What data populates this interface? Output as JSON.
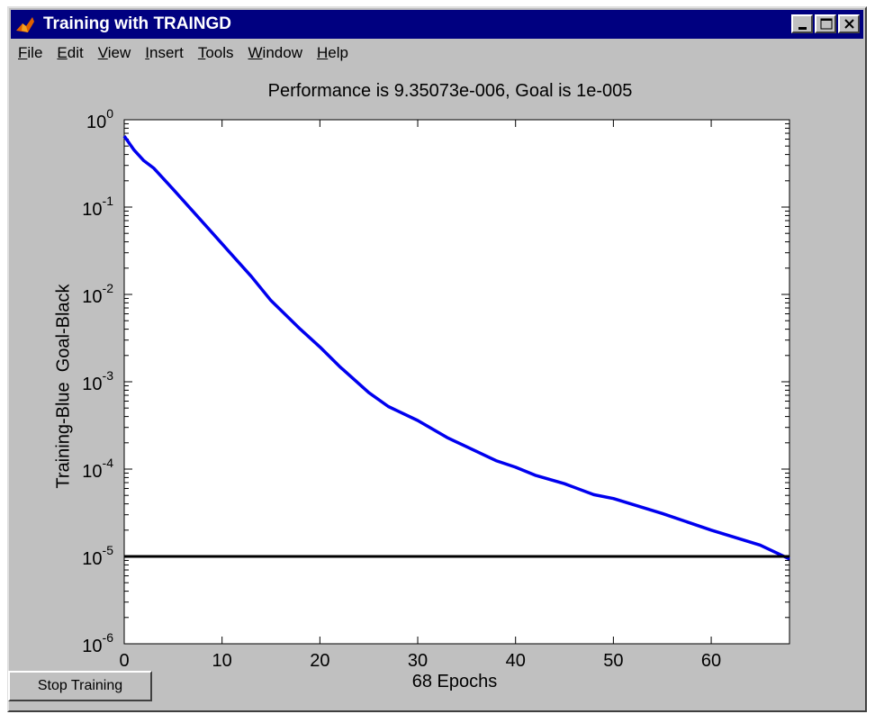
{
  "window": {
    "title": "Training with TRAINGD",
    "controls": [
      "minimize",
      "maximize",
      "close"
    ]
  },
  "menu": [
    {
      "label": "File",
      "hotkey": "F",
      "rest": "ile"
    },
    {
      "label": "Edit",
      "hotkey": "E",
      "rest": "dit"
    },
    {
      "label": "View",
      "hotkey": "V",
      "rest": "iew"
    },
    {
      "label": "Insert",
      "hotkey": "I",
      "rest": "nsert"
    },
    {
      "label": "Tools",
      "hotkey": "T",
      "rest": "ools"
    },
    {
      "label": "Window",
      "hotkey": "W",
      "rest": "indow"
    },
    {
      "label": "Help",
      "hotkey": "H",
      "rest": "elp"
    }
  ],
  "stop_button": {
    "label": "Stop Training"
  },
  "colors": {
    "titlebar": "#000080",
    "window_bg": "#c0c0c0",
    "training_line": "#0000ee",
    "goal_line": "#000000"
  },
  "chart_data": {
    "type": "line",
    "title": "Performance is 9.35073e-006, Goal is 1e-005",
    "xlabel": "68 Epochs",
    "ylabel": "Training-Blue  Goal-Black",
    "yscale": "log",
    "xlim": [
      0,
      68
    ],
    "ylim": [
      1e-06,
      1
    ],
    "x_ticks": [
      0,
      10,
      20,
      30,
      40,
      50,
      60
    ],
    "y_ticks": [
      {
        "value": 1,
        "base": "10",
        "exp": "0"
      },
      {
        "value": 0.1,
        "base": "10",
        "exp": "-1"
      },
      {
        "value": 0.01,
        "base": "10",
        "exp": "-2"
      },
      {
        "value": 0.001,
        "base": "10",
        "exp": "-3"
      },
      {
        "value": 0.0001,
        "base": "10",
        "exp": "-4"
      },
      {
        "value": 1e-05,
        "base": "10",
        "exp": "-5"
      },
      {
        "value": 1e-06,
        "base": "10",
        "exp": "-6"
      }
    ],
    "series": [
      {
        "color": "#0000ee",
        "x": [
          0,
          1,
          2,
          3,
          5,
          7,
          10,
          13,
          15,
          18,
          20,
          22,
          25,
          27,
          28,
          30,
          33,
          35,
          38,
          40,
          42,
          45,
          48,
          50,
          55,
          60,
          65,
          68
        ],
        "y": [
          0.65,
          0.45,
          0.34,
          0.28,
          0.16,
          0.09,
          0.038,
          0.016,
          0.0085,
          0.004,
          0.0025,
          0.0015,
          0.00075,
          0.00052,
          0.00046,
          0.00036,
          0.00023,
          0.00018,
          0.000125,
          0.000105,
          8.5e-05,
          6.8e-05,
          5.1e-05,
          4.6e-05,
          3.1e-05,
          2e-05,
          1.35e-05,
          9.35e-06
        ]
      },
      {
        "color": "#000000",
        "x": [
          0,
          68
        ],
        "y": [
          1e-05,
          1e-05
        ]
      }
    ]
  }
}
